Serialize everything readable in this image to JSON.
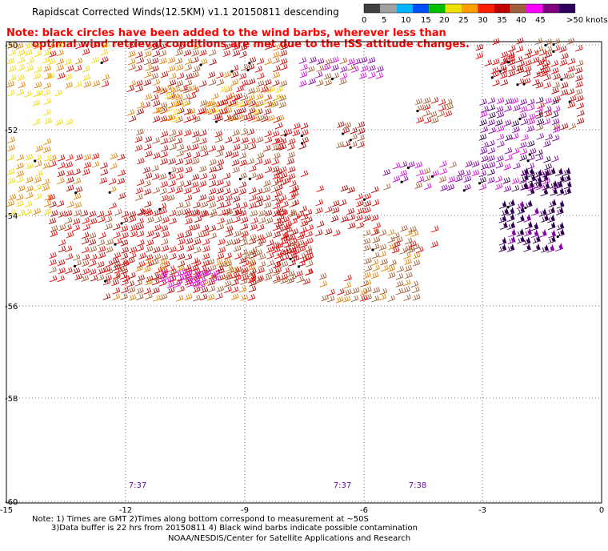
{
  "header": {
    "title": "Rapidscat Corrected Winds(12.5KM) v1.1 20150811 descending",
    "note_line1": "Note: black circles have been added to the wind barbs, wherever less than",
    "note_line2": "optimal wind retrieval conditions are met due to the ISS attitude changes."
  },
  "legend": {
    "labels": [
      "0",
      "5",
      "10",
      "15",
      "20",
      "25",
      "30",
      "35",
      "40",
      "45",
      ">50 knots"
    ],
    "colors": [
      "#404040",
      "#a0a0a0",
      "#00b4ff",
      "#0050ff",
      "#00c000",
      "#f0e000",
      "#ffa000",
      "#ff2000",
      "#c00000",
      "#a06040",
      "#ff00ff",
      "#800080",
      "#300060"
    ]
  },
  "map": {
    "y_labels": [
      "-50",
      "-52",
      "-54",
      "-56",
      "-58",
      "-60"
    ],
    "x_labels": [
      "-15",
      "-12",
      "-9",
      "-6",
      "-3",
      "0"
    ],
    "time_labels": [
      "7:37",
      "7:37",
      "7:38"
    ],
    "barb_colors": {
      "yellow": "#f0d800",
      "orange": "#e08000",
      "red": "#e00000",
      "darkred": "#b00000",
      "brown": "#a05a30",
      "magenta": "#e000e0",
      "purple": "#8000a0",
      "darkpurple": "#300050"
    }
  },
  "footer": {
    "line1": "Note: 1) Times are GMT 2)Times along bottom correspond to measurement at ~50S",
    "line2": "3)Data buffer is 22 hrs from 20150811 4) Black wind barbs indicate possible contamination",
    "line3": "NOAA/NESDIS/Center for Satellite Applications and Research"
  }
}
